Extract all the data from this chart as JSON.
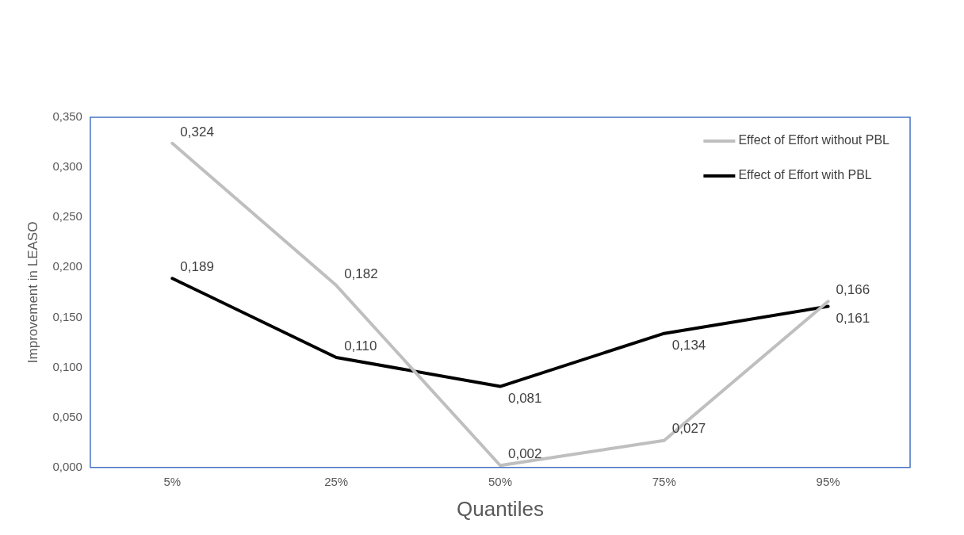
{
  "chart_data": {
    "type": "line",
    "xlabel": "Quantiles",
    "ylabel": "Improvement in LEASO",
    "categories": [
      "5%",
      "25%",
      "50%",
      "75%",
      "95%"
    ],
    "series": [
      {
        "name": "Effect of Effort without PBL",
        "color": "#bfbfbf",
        "values": [
          0.324,
          0.182,
          0.002,
          0.027,
          0.166
        ],
        "value_labels": [
          "0,324",
          "0,182",
          "0,002",
          "0,027",
          "0,166"
        ]
      },
      {
        "name": "Effect of Effort with PBL",
        "color": "#000000",
        "values": [
          0.189,
          0.11,
          0.081,
          0.134,
          0.161
        ],
        "value_labels": [
          "0,189",
          "0,110",
          "0,081",
          "0,134",
          "0,161"
        ]
      }
    ],
    "ylim": [
      0,
      0.35
    ],
    "yticks": [
      {
        "value": 0,
        "label": "0,000"
      },
      {
        "value": 0.05,
        "label": "0,050"
      },
      {
        "value": 0.1,
        "label": "0,100"
      },
      {
        "value": 0.15,
        "label": "0,150"
      },
      {
        "value": 0.2,
        "label": "0,200"
      },
      {
        "value": 0.25,
        "label": "0,250"
      },
      {
        "value": 0.3,
        "label": "0,300"
      },
      {
        "value": 0.35,
        "label": "0,350"
      }
    ],
    "grid": false,
    "legend": "top right",
    "marker": "none",
    "line_style": "solid"
  }
}
